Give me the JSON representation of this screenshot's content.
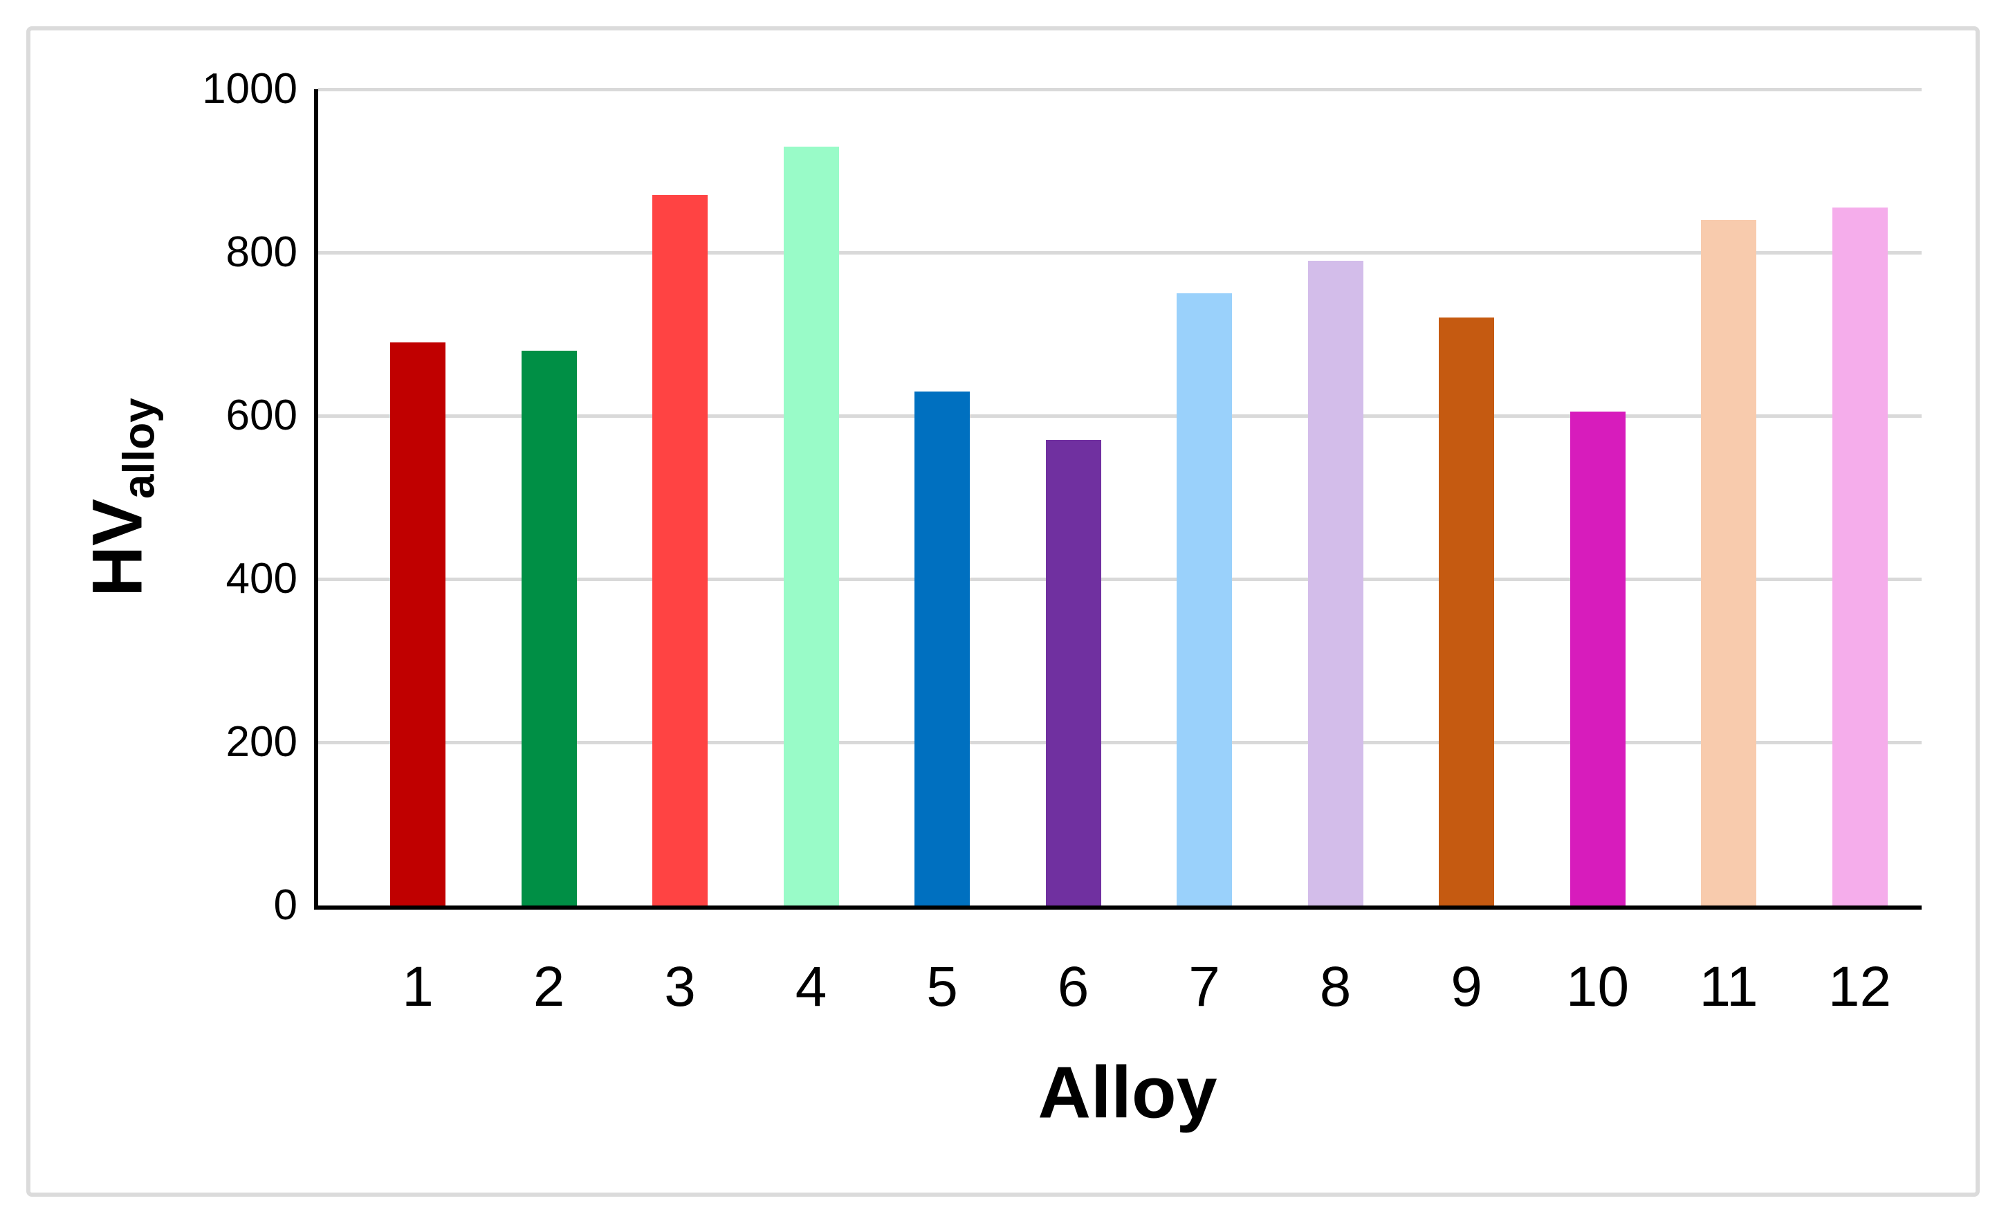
{
  "chart_data": {
    "type": "bar",
    "title": "",
    "xlabel": "Alloy",
    "ylabel_main": "HV",
    "ylabel_subscript": "alloy",
    "categories": [
      "1",
      "2",
      "3",
      "4",
      "5",
      "6",
      "7",
      "8",
      "9",
      "10",
      "11",
      "12"
    ],
    "values": [
      690,
      680,
      870,
      930,
      630,
      570,
      750,
      790,
      720,
      605,
      840,
      855
    ],
    "bar_colors": [
      "#C00000",
      "#008F45",
      "#FF4343",
      "#99FBC8",
      "#0070C0",
      "#7030A0",
      "#9AD1FB",
      "#D3BDEA",
      "#C55A11",
      "#D71CBC",
      "#F8CBAD",
      "#F5ADEB"
    ],
    "ylim": [
      0,
      1000
    ],
    "yticks": [
      0,
      200,
      400,
      600,
      800,
      1000
    ],
    "grid": "horizontal-only",
    "legend": "none"
  },
  "colors": {
    "gridline": "#D9D9D9",
    "axis": "#000000",
    "frame_border": "#DBDBDB",
    "background": "#FFFFFF"
  }
}
